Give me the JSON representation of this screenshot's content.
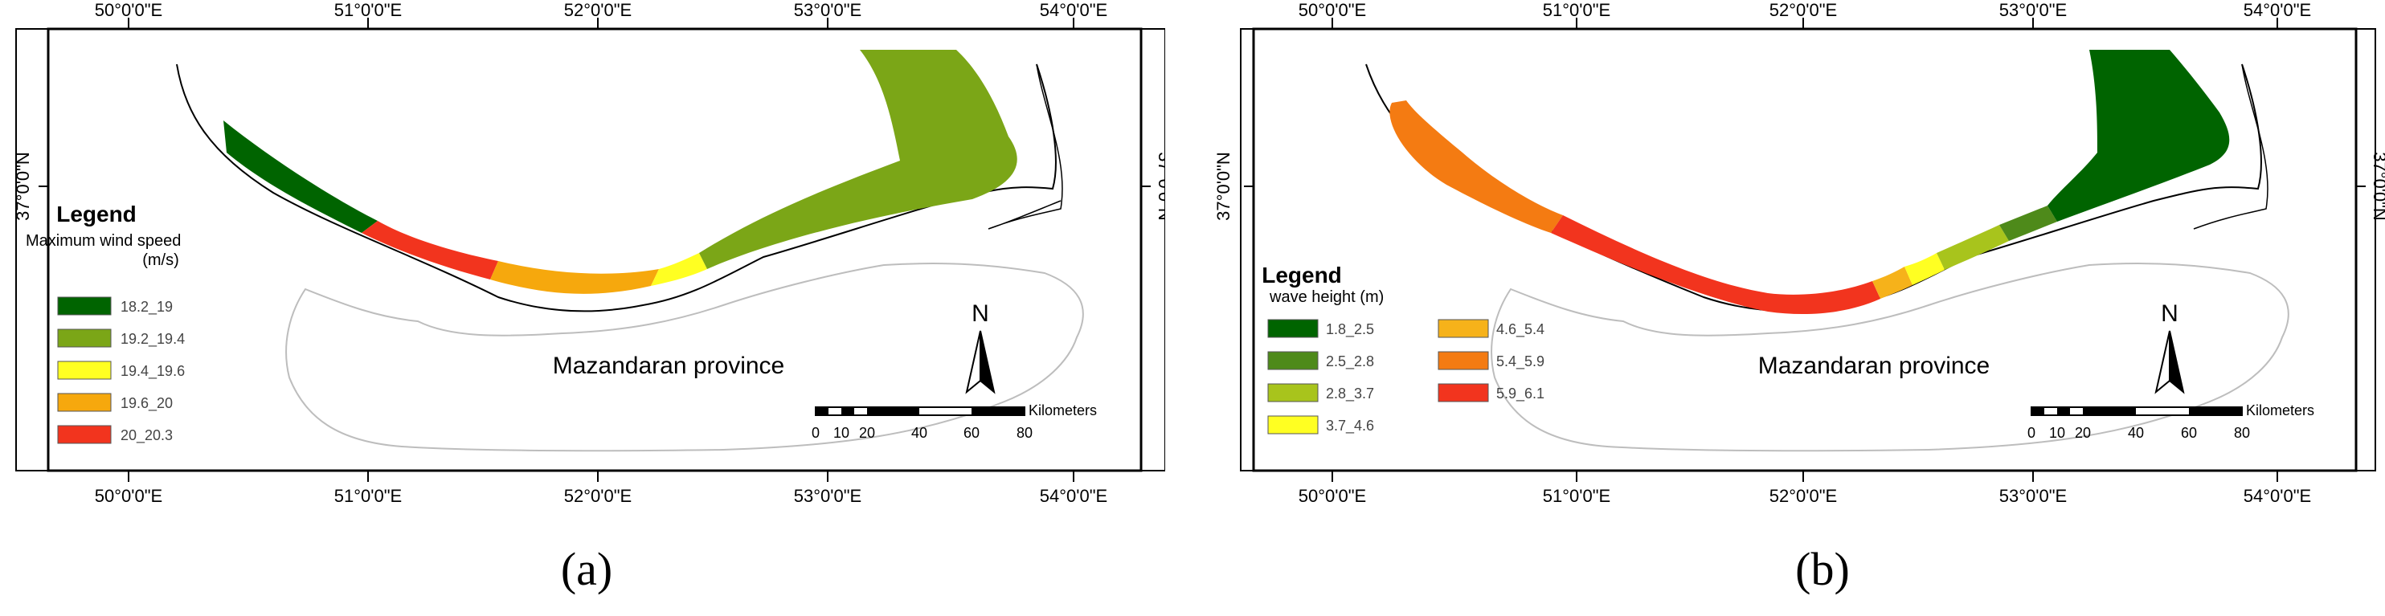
{
  "colors": {
    "dark_green": "#006400",
    "olive_green": "#7ba617",
    "mid_green": "#4e8a1a",
    "yellow_green": "#a8c41c",
    "yellow": "#ffff22",
    "orange_light": "#f6a80d",
    "orange": "#f47b12",
    "red": "#f2341e",
    "frame": "#000000",
    "province_outline": "#bdbdbd"
  },
  "axes": {
    "top_lon": [
      "50°0'0\"E",
      "51°0'0\"E",
      "52°0'0\"E",
      "53°0'0\"E",
      "54°0'0\"E"
    ],
    "bottom_lon": [
      "50°0'0\"E",
      "51°0'0\"E",
      "52°0'0\"E",
      "53°0'0\"E",
      "54°0'0\"E"
    ],
    "lat_label": "37°0'0\"N"
  },
  "panel_a": {
    "caption": "(a)",
    "legend_title": "Legend",
    "legend_subtitle": "Maximum wind speed",
    "legend_unit": "(m/s)",
    "legend_items": [
      {
        "label": "18.2_19",
        "color": "#006400"
      },
      {
        "label": "19.2_19.4",
        "color": "#7ba617"
      },
      {
        "label": "19.4_19.6",
        "color": "#ffff22"
      },
      {
        "label": "19.6_20",
        "color": "#f6a80d"
      },
      {
        "label": "20_20.3",
        "color": "#f2341e"
      }
    ],
    "province_label": "Mazandaran province",
    "north_label": "N",
    "scale_unit": "Kilometers",
    "scale_ticks": [
      "0",
      "10",
      "20",
      "40",
      "60",
      "80"
    ]
  },
  "panel_b": {
    "caption": "(b)",
    "legend_title": "Legend",
    "legend_subtitle": "wave height (m)",
    "legend_items": [
      {
        "label": "1.8_2.5",
        "color": "#006400"
      },
      {
        "label": "2.5_2.8",
        "color": "#4e8a1a"
      },
      {
        "label": "2.8_3.7",
        "color": "#a8c41c"
      },
      {
        "label": "3.7_4.6",
        "color": "#ffff22"
      },
      {
        "label": "4.6_5.4",
        "color": "#f6b21a"
      },
      {
        "label": "5.4_5.9",
        "color": "#f47b12"
      },
      {
        "label": "5.9_6.1",
        "color": "#f2341e"
      }
    ],
    "province_label": "Mazandaran province",
    "north_label": "N",
    "scale_unit": "Kilometers",
    "scale_ticks": [
      "0",
      "10",
      "20",
      "40",
      "60",
      "80"
    ]
  }
}
